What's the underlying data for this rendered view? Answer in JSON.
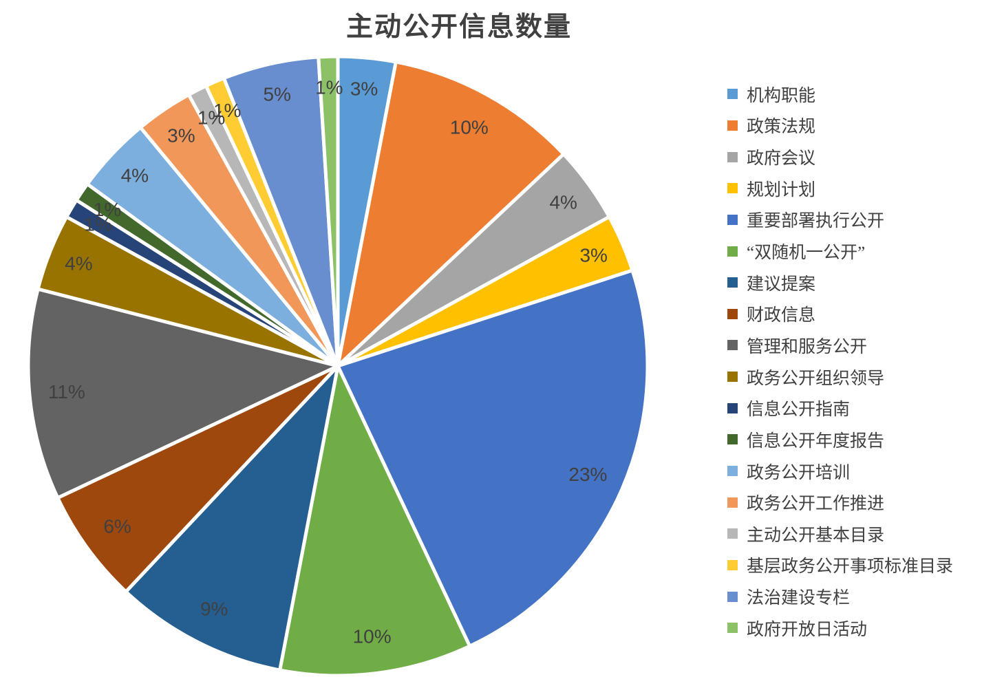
{
  "chart_data": {
    "type": "pie",
    "title": "主动公开信息数量",
    "data_label_format": "percent",
    "start_angle_deg": 0,
    "direction": "clockwise",
    "legend_position": "right",
    "background_color": "#FFFFFF",
    "slice_border_color": "#FFFFFF",
    "label_color": "#404040",
    "title_color": "#404040",
    "slices": [
      {
        "label": "机构职能",
        "value": 3,
        "color": "#5B9BD5"
      },
      {
        "label": "政策法规",
        "value": 10,
        "color": "#ED7D31"
      },
      {
        "label": "政府会议",
        "value": 4,
        "color": "#A5A5A5"
      },
      {
        "label": "规划计划",
        "value": 3,
        "color": "#FFC000"
      },
      {
        "label": "重要部署执行公开",
        "value": 23,
        "color": "#4472C4"
      },
      {
        "label": "“双随机一公开”",
        "value": 10,
        "color": "#70AD47"
      },
      {
        "label": "建议提案",
        "value": 9,
        "color": "#255E91"
      },
      {
        "label": "财政信息",
        "value": 6,
        "color": "#9E480E"
      },
      {
        "label": "管理和服务公开",
        "value": 11,
        "color": "#636363"
      },
      {
        "label": "政务公开组织领导",
        "value": 4,
        "color": "#997300"
      },
      {
        "label": "信息公开指南",
        "value": 1,
        "color": "#264478"
      },
      {
        "label": "信息公开年度报告",
        "value": 1,
        "color": "#43682B"
      },
      {
        "label": "政务公开培训",
        "value": 4,
        "color": "#7CAFDD"
      },
      {
        "label": "政务公开工作推进",
        "value": 3,
        "color": "#F1975A"
      },
      {
        "label": "主动公开基本目录",
        "value": 1,
        "color": "#B7B7B7"
      },
      {
        "label": "基层政务公开事项标准目录",
        "value": 1,
        "color": "#FFCD33"
      },
      {
        "label": "法治建设专栏",
        "value": 5,
        "color": "#698ED0"
      },
      {
        "label": "政府开放日活动",
        "value": 1,
        "color": "#8CC168"
      }
    ]
  }
}
